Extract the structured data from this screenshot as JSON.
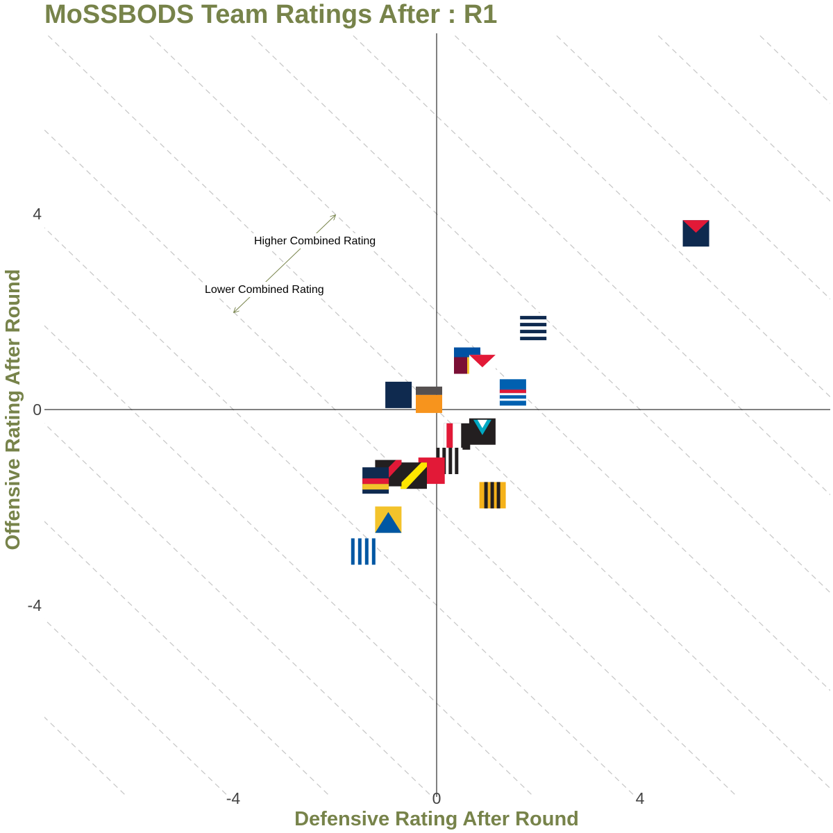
{
  "title": "MoSSBODS Team Ratings After : R1",
  "chart_data": {
    "type": "scatter",
    "title": "MoSSBODS Team Ratings After : R1",
    "xlabel": "Defensive Rating After Round",
    "ylabel": "Offensive Rating After Round",
    "xlim": [
      -7.7,
      7.7
    ],
    "ylim": [
      -7.7,
      7.7
    ],
    "x_ticks": [
      -4,
      0,
      4
    ],
    "y_ticks": [
      -4,
      0,
      4
    ],
    "x_tick_labels": [
      "-4",
      "0",
      "4"
    ],
    "y_tick_labels": [
      "-4",
      "0",
      "4"
    ],
    "grid": false,
    "reference_lines": "dashed diagonals of constant combined rating",
    "annotations": {
      "higher": "Higher Combined Rating",
      "lower": "Lower Combined Rating"
    },
    "points": [
      {
        "x": 5.1,
        "y": 3.6,
        "icon": "red-v-navy"
      },
      {
        "x": 1.9,
        "y": 1.7,
        "icon": "navy-white-stripes"
      },
      {
        "x": 0.6,
        "y": 1.0,
        "icon": "blue-maroon-gold"
      },
      {
        "x": 0.9,
        "y": 0.85,
        "icon": "red-v-white"
      },
      {
        "x": 1.5,
        "y": 0.35,
        "icon": "blue-red-white-bands"
      },
      {
        "x": -0.75,
        "y": 0.3,
        "icon": "navy-solid"
      },
      {
        "x": -0.15,
        "y": 0.2,
        "icon": "grey-orange"
      },
      {
        "x": 0.4,
        "y": -0.55,
        "icon": "red-white-black-stripes"
      },
      {
        "x": 0.9,
        "y": -0.45,
        "icon": "black-teal-chevron"
      },
      {
        "x": 0.25,
        "y": -1.05,
        "icon": "black-white-stripes"
      },
      {
        "x": -0.1,
        "y": -1.25,
        "icon": "red-solid"
      },
      {
        "x": -0.45,
        "y": -1.35,
        "icon": "black-yellow-sash"
      },
      {
        "x": -0.95,
        "y": -1.3,
        "icon": "black-red-sash"
      },
      {
        "x": -1.2,
        "y": -1.45,
        "icon": "navy-red-gold-bands"
      },
      {
        "x": 1.1,
        "y": -1.75,
        "icon": "yellow-black-stripes"
      },
      {
        "x": -0.95,
        "y": -2.25,
        "icon": "gold-blue-triangle"
      },
      {
        "x": -1.45,
        "y": -2.9,
        "icon": "blue-white-stripes"
      }
    ]
  }
}
